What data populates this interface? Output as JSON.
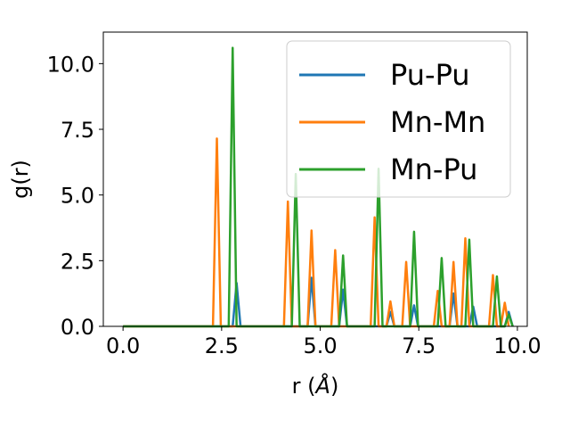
{
  "chart_data": {
    "type": "line",
    "xlabel_main": "r (",
    "xlabel_unit": "Å",
    "xlabel_close": ")",
    "ylabel": "g(r)",
    "xlim": [
      -0.5,
      10.25
    ],
    "ylim": [
      0,
      11.2
    ],
    "xticks": [
      0.0,
      2.5,
      5.0,
      7.5,
      10.0
    ],
    "xtick_labels": [
      "0.0",
      "2.5",
      "5.0",
      "7.5",
      "10.0"
    ],
    "yticks": [
      0.0,
      2.5,
      5.0,
      7.5,
      10.0
    ],
    "ytick_labels": [
      "0.0",
      "2.5",
      "5.0",
      "7.5",
      "10.0"
    ],
    "grid": false,
    "legend_position": "upper-right",
    "series": [
      {
        "name": "Pu-Pu",
        "color": "#1f77b4",
        "x": [
          0.0,
          2.78,
          2.88,
          2.98,
          4.68,
          4.78,
          4.88,
          5.48,
          5.58,
          5.68,
          6.68,
          6.78,
          6.88,
          7.28,
          7.38,
          7.48,
          8.28,
          8.38,
          8.48,
          8.78,
          8.88,
          8.98,
          9.68,
          9.78,
          9.88
        ],
        "y": [
          0.0,
          0.0,
          1.65,
          0.0,
          0.0,
          1.85,
          0.0,
          0.0,
          1.4,
          0.0,
          0.0,
          0.55,
          0.0,
          0.0,
          0.8,
          0.0,
          0.0,
          1.25,
          0.0,
          0.0,
          0.75,
          0.0,
          0.0,
          0.55,
          0.0
        ]
      },
      {
        "name": "Mn-Mn",
        "color": "#ff7f0e",
        "x": [
          0.0,
          2.28,
          2.38,
          2.48,
          4.08,
          4.18,
          4.28,
          4.68,
          4.78,
          4.88,
          5.28,
          5.38,
          5.48,
          6.28,
          6.38,
          6.48,
          6.68,
          6.78,
          6.88,
          7.08,
          7.18,
          7.28,
          7.88,
          7.98,
          8.08,
          8.28,
          8.38,
          8.48,
          8.58,
          8.68,
          8.78,
          9.28,
          9.38,
          9.48,
          9.58,
          9.68,
          9.78
        ],
        "y": [
          0.0,
          0.0,
          7.15,
          0.0,
          0.0,
          4.75,
          0.0,
          0.0,
          3.65,
          0.0,
          0.0,
          2.9,
          0.0,
          0.0,
          4.15,
          0.0,
          0.0,
          0.95,
          0.0,
          0.0,
          2.45,
          0.0,
          0.0,
          1.35,
          0.0,
          0.0,
          2.45,
          0.0,
          0.0,
          3.35,
          0.0,
          0.0,
          1.95,
          0.0,
          0.0,
          0.9,
          0.0
        ]
      },
      {
        "name": "Mn-Pu",
        "color": "#2ca02c",
        "x": [
          0.0,
          2.68,
          2.78,
          2.88,
          4.28,
          4.38,
          4.48,
          5.48,
          5.58,
          5.68,
          6.38,
          6.48,
          6.58,
          7.28,
          7.38,
          7.48,
          7.98,
          8.08,
          8.18,
          8.68,
          8.78,
          8.88,
          9.38,
          9.48,
          9.58,
          9.68,
          9.78,
          9.88
        ],
        "y": [
          0.0,
          0.0,
          10.6,
          0.0,
          0.0,
          5.8,
          0.0,
          0.0,
          2.7,
          0.0,
          0.0,
          6.0,
          0.0,
          0.0,
          3.6,
          0.0,
          0.0,
          2.6,
          0.0,
          0.0,
          3.3,
          0.0,
          0.0,
          1.9,
          0.0,
          0.0,
          0.45,
          0.0
        ]
      }
    ]
  }
}
